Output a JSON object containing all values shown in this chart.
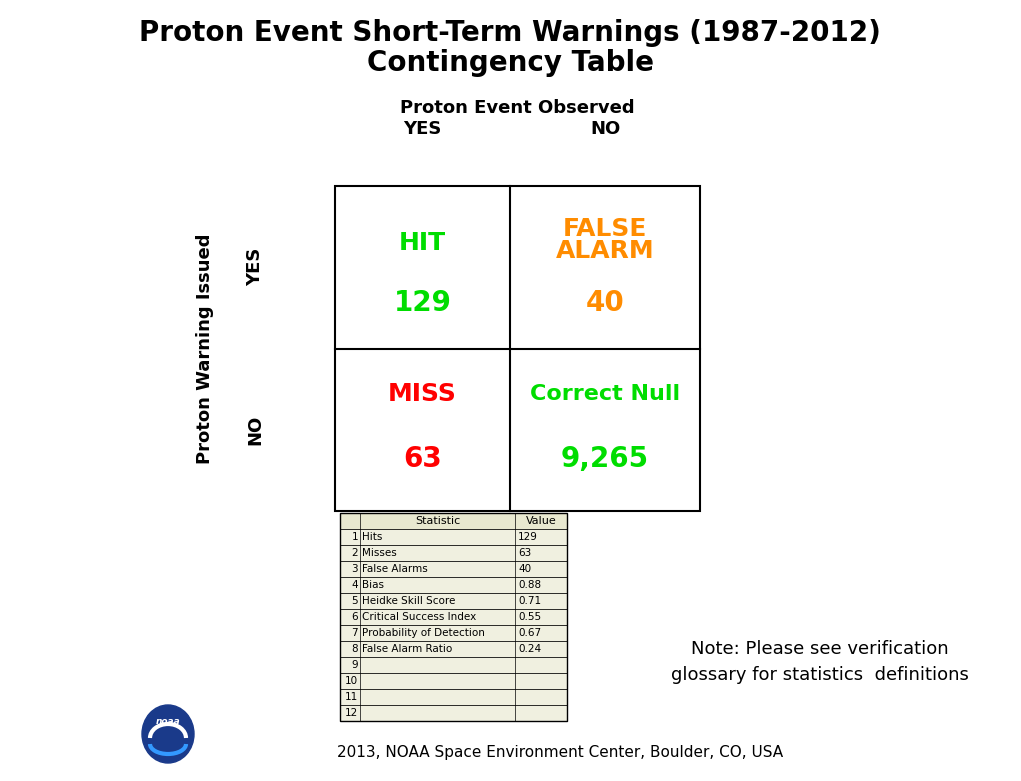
{
  "title_line1": "Proton Event Short-Term Warnings (1987-2012)",
  "title_line2": "Contingency Table",
  "col_header": "Proton Event Observed",
  "col_yes": "YES",
  "col_no": "NO",
  "row_header": "Proton Warning Issued",
  "row_yes": "YES",
  "row_no": "NO",
  "hit_label": "HIT",
  "hit_value": "129",
  "hit_color": "#00dd00",
  "false_alarm_label": "FALSE\nALARM",
  "false_alarm_value": "40",
  "false_alarm_color": "#ff8c00",
  "miss_label": "MISS",
  "miss_value": "63",
  "miss_color": "#ff0000",
  "correct_null_label": "Correct Null",
  "correct_null_value": "9,265",
  "correct_null_color": "#00dd00",
  "stats_rows": [
    [
      "1",
      "Hits",
      "129"
    ],
    [
      "2",
      "Misses",
      "63"
    ],
    [
      "3",
      "False Alarms",
      "40"
    ],
    [
      "4",
      "Bias",
      "0.88"
    ],
    [
      "5",
      "Heidke Skill Score",
      "0.71"
    ],
    [
      "6",
      "Critical Success Index",
      "0.55"
    ],
    [
      "7",
      "Probability of Detection",
      "0.67"
    ],
    [
      "8",
      "False Alarm Ratio",
      "0.24"
    ],
    [
      "9",
      "",
      ""
    ],
    [
      "10",
      "",
      ""
    ],
    [
      "11",
      "",
      ""
    ],
    [
      "12",
      "",
      ""
    ]
  ],
  "note_line1": "Note: Please see verification",
  "note_line2": "glossary for statistics  definitions",
  "footer": "2013, NOAA Space Environment Center, Boulder, CO, USA",
  "bg_color": "#ffffff",
  "title_fontsize": 20,
  "col_header_fontsize": 13,
  "col_label_fontsize": 13,
  "row_label_fontsize": 13,
  "cell_label_fontsize": 18,
  "cell_value_fontsize": 20,
  "correct_null_label_fontsize": 16,
  "stats_fontsize": 8,
  "note_fontsize": 13,
  "footer_fontsize": 11,
  "table_header_bg": "#e8e8d0",
  "stats_row_bg": "#f0f0e0"
}
